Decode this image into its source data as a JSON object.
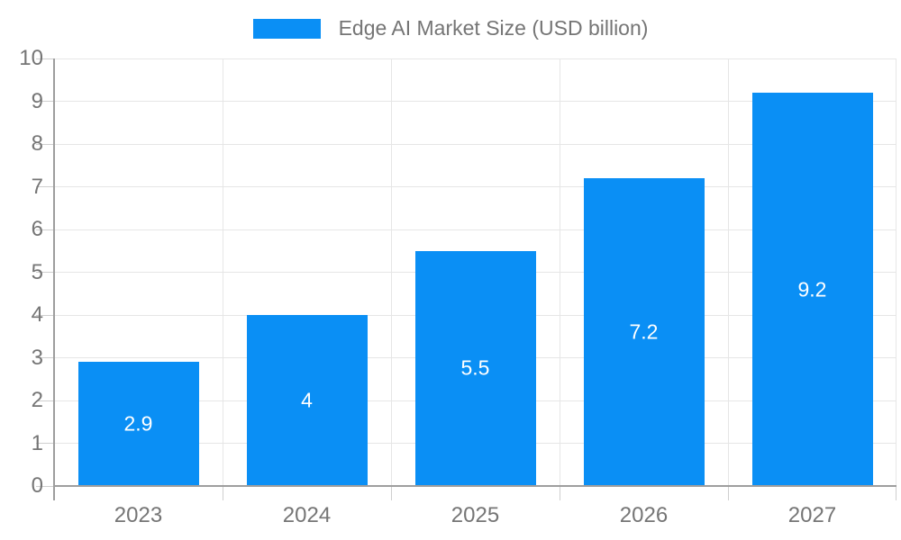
{
  "colors": {
    "bar": "#0a8ff5",
    "grid": "#e6e6e6",
    "axis": "#9e9e9e",
    "tick": "#cfcfcf",
    "label_text": "#757575",
    "value_text": "#ffffff"
  },
  "legend": {
    "label": "Edge AI Market Size (USD billion)"
  },
  "chart_data": {
    "type": "bar",
    "title": "Edge AI Market Size (USD billion)",
    "categories": [
      "2023",
      "2024",
      "2025",
      "2026",
      "2027"
    ],
    "values": [
      2.9,
      4,
      5.5,
      7.2,
      9.2
    ],
    "value_labels": [
      "2.9",
      "4",
      "5.5",
      "7.2",
      "9.2"
    ],
    "series": [
      {
        "name": "Edge AI Market Size (USD billion)",
        "values": [
          2.9,
          4,
          5.5,
          7.2,
          9.2
        ]
      }
    ],
    "xlabel": "",
    "ylabel": "",
    "ylim": [
      0,
      10
    ],
    "yticks": [
      0,
      1,
      2,
      3,
      4,
      5,
      6,
      7,
      8,
      9,
      10
    ],
    "grid": true,
    "legend_position": "top",
    "value_labels_position": "inside-center"
  }
}
